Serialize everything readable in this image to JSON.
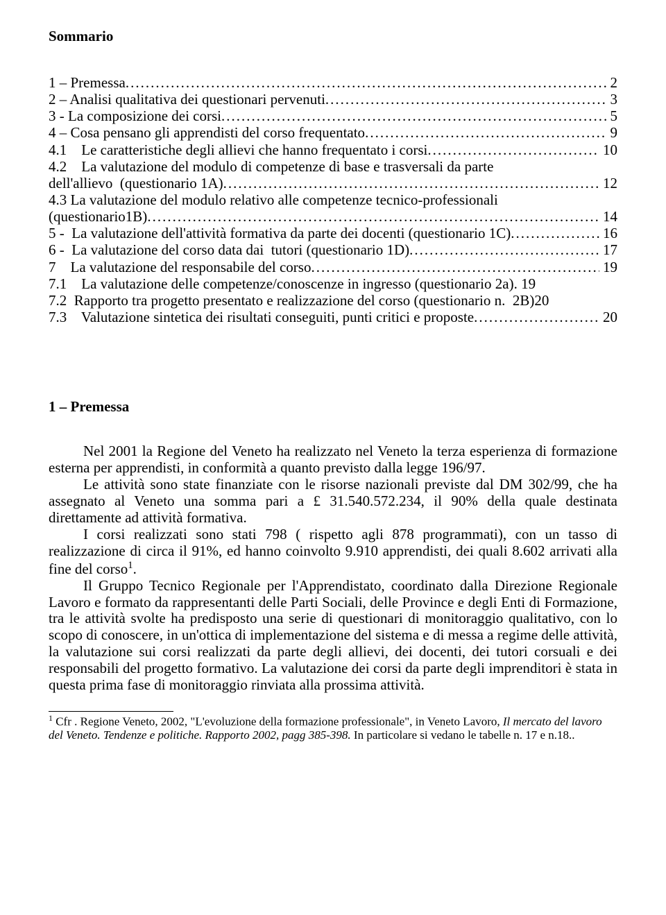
{
  "heading": "Sommario",
  "toc": {
    "dots": "...............................................................................................................................................................",
    "entries": [
      {
        "label": "1 – Premessa",
        "page": " 2",
        "indent": 0,
        "continuation": false
      },
      {
        "label": "2 – Analisi qualitativa dei questionari pervenuti",
        "page": " 3",
        "indent": 0,
        "continuation": false
      },
      {
        "label": "3 - La composizione dei corsi",
        "page": " 5",
        "indent": 0,
        "continuation": false
      },
      {
        "label": "4 – Cosa pensano gli apprendisti del corso frequentato",
        "page": " 9",
        "indent": 0,
        "continuation": false
      },
      {
        "label": "4.1    Le caratteristiche degli allievi che hanno frequentato i corsi",
        "page": " 10",
        "indent": 1,
        "continuation": false
      },
      {
        "label": "4.2    La valutazione del modulo di competenze di base e trasversali da parte",
        "page": "",
        "indent": 1,
        "continuation": true
      },
      {
        "label": "dell'allievo  (questionario 1A)",
        "page": " 12",
        "indent": 1,
        "continuation": false
      },
      {
        "label": "4.3 La valutazione del modulo relativo alle competenze tecnico-professionali",
        "page": "",
        "indent": 1,
        "continuation": true
      },
      {
        "label": "(questionario1B)",
        "page": " 14",
        "indent": 1,
        "continuation": false
      },
      {
        "label": "5 -  La valutazione dell'attività formativa da parte dei docenti (questionario 1C)",
        "page": " 16",
        "indent": 0,
        "continuation": false
      },
      {
        "label": "6 -  La valutazione del corso data dai  tutori (questionario 1D)",
        "page": " 17",
        "indent": 0,
        "continuation": false
      },
      {
        "label": "7    La valutazione del responsabile del corso",
        "page": " 19",
        "indent": 0,
        "continuation": false
      },
      {
        "label": "7.1    La valutazione delle competenze/conoscenze in ingresso (questionario 2a)",
        "page": ". 19",
        "indent": 1,
        "continuation": false,
        "noDots": true
      },
      {
        "label": "7.2  Rapporto tra progetto presentato e realizzazione del corso (questionario n.  2B)",
        "page": "20",
        "indent": 1,
        "continuation": false,
        "noDots": true,
        "noSpace": true
      },
      {
        "label": "7.3    Valutazione sintetica dei risultati conseguiti, punti critici e proposte",
        "page": " 20",
        "indent": 1,
        "continuation": false
      }
    ]
  },
  "section_title": "1 – Premessa",
  "paragraphs": [
    "Nel 2001 la Regione del Veneto ha realizzato nel Veneto la terza esperienza di formazione esterna per apprendisti, in conformità a quanto previsto dalla legge 196/97.",
    "Le attività sono state finanziate con le risorse nazionali previste dal DM 302/99, che ha assegnato al Veneto una somma pari a £ 31.540.572.234, il 90% della quale destinata direttamente ad attività formativa.",
    "I corsi realizzati sono stati 798 ( rispetto agli 878 programmati), con un tasso di realizzazione di circa il 91%, ed hanno coinvolto 9.910 apprendisti, dei quali 8.602 arrivati alla fine del corso",
    "Il Gruppo Tecnico Regionale per l'Apprendistato, coordinato dalla Direzione Regionale Lavoro e formato da rappresentanti delle Parti Sociali, delle Province e degli Enti di Formazione, tra le attività svolte ha predisposto una serie di questionari di monitoraggio qualitativo, con lo scopo di conoscere, in un'ottica di implementazione del sistema e di messa a regime delle attività, la valutazione sui corsi realizzati da parte degli allievi, dei docenti, dei tutori corsuali e dei responsabili del progetto formativo. La valutazione dei corsi da parte degli imprenditori è stata in questa prima fase di monitoraggio rinviata alla prossima attività."
  ],
  "footnote_marker": "1",
  "footnote": {
    "prefix": " Cfr . Regione Veneto, 2002, \"L'evoluzione della formazione professionale\", in Veneto Lavoro, ",
    "italic": "Il mercato del lavoro del Veneto. Tendenze e politiche. Rapporto 2002, pagg 385-398.",
    "suffix": " In particolare si vedano le tabelle n. 17 e n.18.."
  }
}
